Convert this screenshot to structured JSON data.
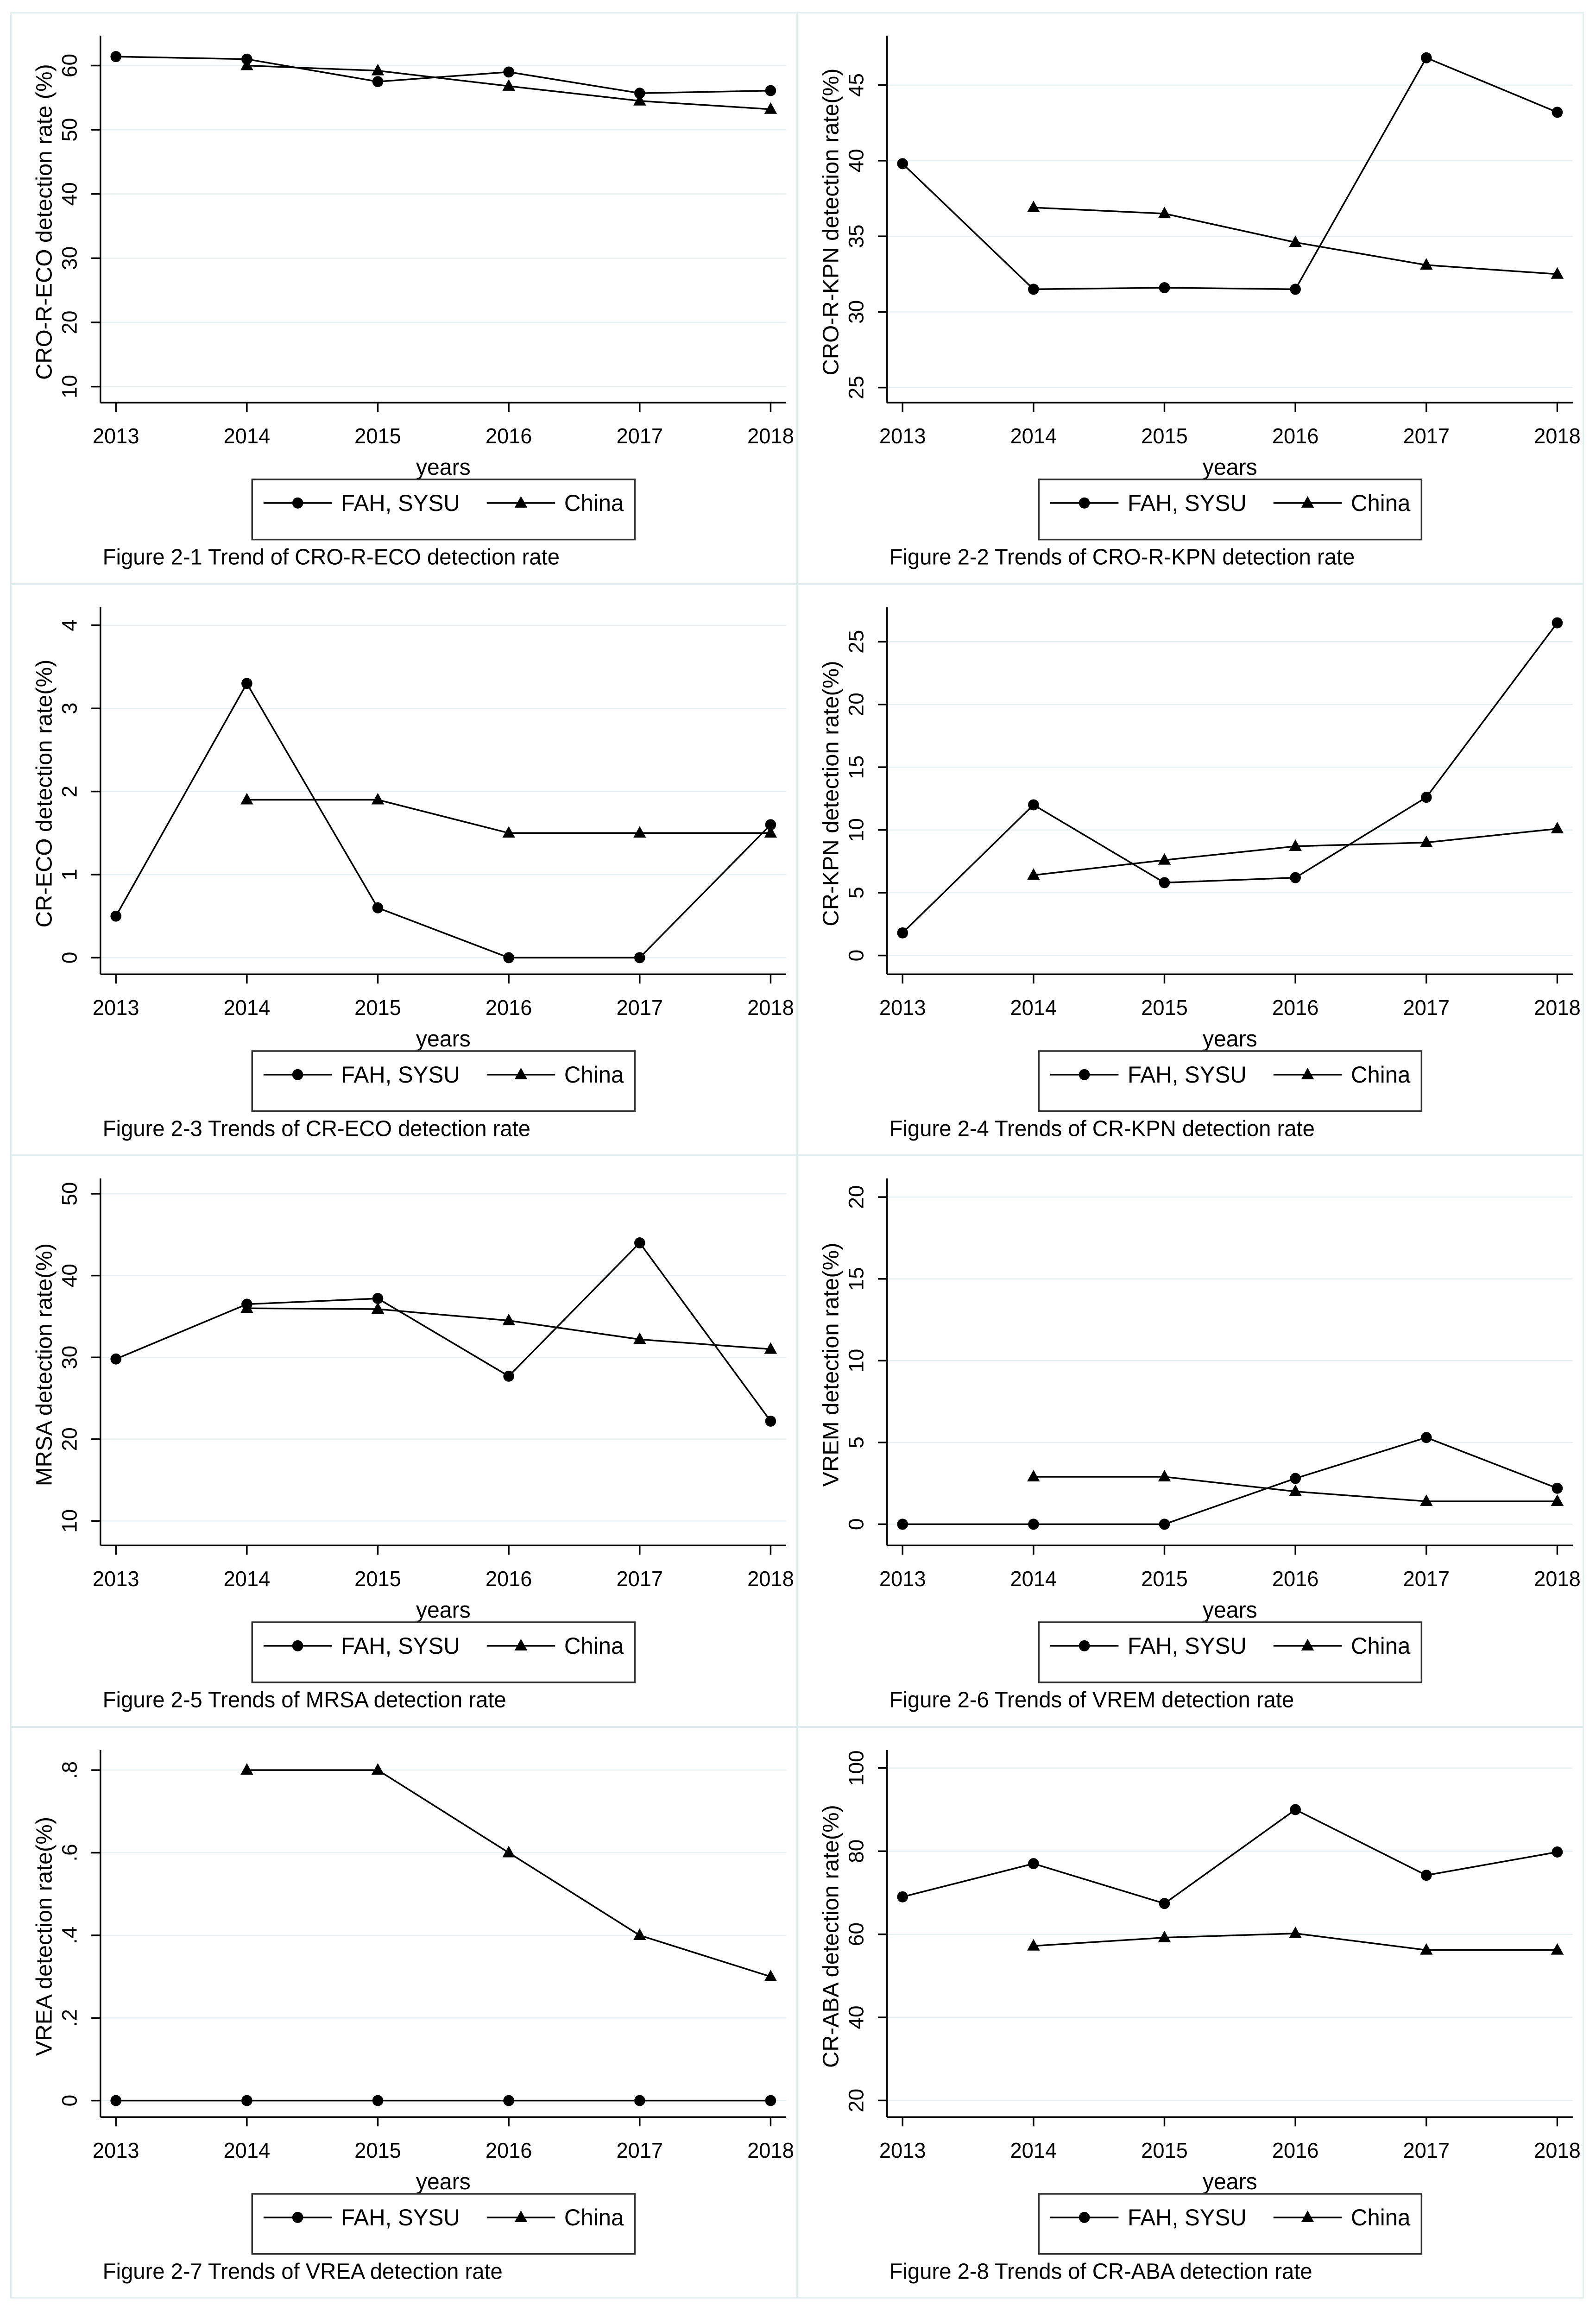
{
  "page": {
    "x_title": "years",
    "years": [
      "2013",
      "2014",
      "2015",
      "2016",
      "2017",
      "2018"
    ],
    "legend": {
      "fah": "FAH, SYSU",
      "china": "China"
    },
    "colors": {
      "line": "#000000",
      "gridline": "#e6f0f2",
      "separator": "#dfecee",
      "background": "#ffffff"
    }
  },
  "chart_data": [
    {
      "type": "line",
      "caption": "Figure 2-1 Trend of CRO-R-ECO detection rate",
      "ylabel": "CRO-R-ECO detection rate (%)",
      "xlabel": "years",
      "x": [
        2013,
        2014,
        2015,
        2016,
        2017,
        2018
      ],
      "yticks": [
        10,
        20,
        30,
        40,
        50,
        60
      ],
      "ylim": [
        7.5,
        63.8
      ],
      "legend_position": "bottom",
      "grid": true,
      "series": [
        {
          "name": "FAH, SYSU",
          "marker": "circle",
          "values": [
            61.4,
            61.0,
            57.5,
            59.0,
            55.7,
            56.1
          ]
        },
        {
          "name": "China",
          "marker": "triangle",
          "values": [
            null,
            60.0,
            59.2,
            56.8,
            54.5,
            53.2
          ]
        }
      ]
    },
    {
      "type": "line",
      "caption": "Figure 2-2 Trends of CRO-R-KPN detection rate",
      "ylabel": "CRO-R-KPN detection rate(%)",
      "xlabel": "years",
      "x": [
        2013,
        2014,
        2015,
        2016,
        2017,
        2018
      ],
      "yticks": [
        25,
        30,
        35,
        40,
        45
      ],
      "ylim": [
        24,
        47.9
      ],
      "legend_position": "bottom",
      "grid": true,
      "series": [
        {
          "name": "FAH, SYSU",
          "marker": "circle",
          "values": [
            39.8,
            31.5,
            31.6,
            31.5,
            46.8,
            43.2
          ]
        },
        {
          "name": "China",
          "marker": "triangle",
          "values": [
            null,
            36.9,
            36.5,
            34.6,
            33.1,
            32.5
          ]
        }
      ]
    },
    {
      "type": "line",
      "caption": "Figure 2-3 Trends of CR-ECO detection rate",
      "ylabel": "CR-ECO detection rate(%)",
      "xlabel": "years",
      "x": [
        2013,
        2014,
        2015,
        2016,
        2017,
        2018
      ],
      "yticks": [
        0,
        1,
        2,
        3,
        4
      ],
      "ylim": [
        -0.2,
        4.15
      ],
      "legend_position": "bottom",
      "grid": true,
      "series": [
        {
          "name": "FAH, SYSU",
          "marker": "circle",
          "values": [
            0.5,
            3.3,
            0.6,
            0,
            0,
            1.6
          ]
        },
        {
          "name": "China",
          "marker": "triangle",
          "values": [
            null,
            1.9,
            1.9,
            1.5,
            1.5,
            1.5
          ]
        }
      ]
    },
    {
      "type": "line",
      "caption": "Figure 2-4 Trends of CR-KPN detection rate",
      "ylabel": "CR-KPN detection rate(%)",
      "xlabel": "years",
      "x": [
        2013,
        2014,
        2015,
        2016,
        2017,
        2018
      ],
      "yticks": [
        0,
        5,
        10,
        15,
        20,
        25
      ],
      "ylim": [
        -1.5,
        27.3
      ],
      "legend_position": "bottom",
      "grid": true,
      "series": [
        {
          "name": "FAH, SYSU",
          "marker": "circle",
          "values": [
            1.8,
            12.0,
            5.8,
            6.2,
            12.6,
            26.5
          ]
        },
        {
          "name": "China",
          "marker": "triangle",
          "values": [
            null,
            6.4,
            7.6,
            8.7,
            9.0,
            10.1
          ]
        }
      ]
    },
    {
      "type": "line",
      "caption": "Figure 2-5 Trends of MRSA detection rate",
      "ylabel": "MRSA detection rate(%)",
      "xlabel": "years",
      "x": [
        2013,
        2014,
        2015,
        2016,
        2017,
        2018
      ],
      "yticks": [
        10,
        20,
        30,
        40,
        50
      ],
      "ylim": [
        7,
        51.2
      ],
      "legend_position": "bottom",
      "grid": true,
      "series": [
        {
          "name": "FAH, SYSU",
          "marker": "circle",
          "values": [
            29.8,
            36.5,
            37.2,
            27.7,
            44.0,
            22.2
          ]
        },
        {
          "name": "China",
          "marker": "triangle",
          "values": [
            null,
            36.0,
            35.9,
            34.5,
            32.2,
            31.0
          ]
        }
      ]
    },
    {
      "type": "line",
      "caption": "Figure 2-6 Trends of VREM detection rate",
      "ylabel": "VREM detection rate(%)",
      "xlabel": "years",
      "x": [
        2013,
        2014,
        2015,
        2016,
        2017,
        2018
      ],
      "yticks": [
        0,
        5,
        10,
        15,
        20
      ],
      "ylim": [
        -1.3,
        20.8
      ],
      "legend_position": "bottom",
      "grid": true,
      "series": [
        {
          "name": "FAH, SYSU",
          "marker": "circle",
          "values": [
            0,
            0,
            0,
            2.8,
            5.3,
            2.2
          ]
        },
        {
          "name": "China",
          "marker": "triangle",
          "values": [
            null,
            2.9,
            2.9,
            2.0,
            1.4,
            1.4
          ]
        }
      ]
    },
    {
      "type": "line",
      "caption": "Figure 2-7 Trends of VREA detection rate",
      "ylabel": "VREA detection rate(%)",
      "xlabel": "years",
      "x": [
        2013,
        2014,
        2015,
        2016,
        2017,
        2018
      ],
      "yticks": [
        0,
        0.2,
        0.4,
        0.6,
        0.8
      ],
      "ytick_labels": [
        "0",
        ".2",
        ".4",
        ".6",
        ".8"
      ],
      "ylim": [
        -0.04,
        0.835
      ],
      "legend_position": "bottom",
      "grid": true,
      "series": [
        {
          "name": "FAH, SYSU",
          "marker": "circle",
          "values": [
            0,
            0,
            0,
            0,
            0,
            0
          ]
        },
        {
          "name": "China",
          "marker": "triangle",
          "values": [
            null,
            0.8,
            0.8,
            0.6,
            0.4,
            0.3
          ]
        }
      ]
    },
    {
      "type": "line",
      "caption": "Figure 2-8 Trends of CR-ABA detection rate",
      "ylabel": "CR-ABA detection rate(%)",
      "xlabel": "years",
      "x": [
        2013,
        2014,
        2015,
        2016,
        2017,
        2018
      ],
      "yticks": [
        20,
        40,
        60,
        80,
        100
      ],
      "ylim": [
        16,
        103
      ],
      "legend_position": "bottom",
      "grid": true,
      "series": [
        {
          "name": "FAH, SYSU",
          "marker": "circle",
          "values": [
            69.0,
            77.0,
            67.4,
            90.0,
            74.2,
            79.8
          ]
        },
        {
          "name": "China",
          "marker": "triangle",
          "values": [
            null,
            57.2,
            59.2,
            60.2,
            56.2,
            56.2
          ]
        }
      ]
    }
  ]
}
